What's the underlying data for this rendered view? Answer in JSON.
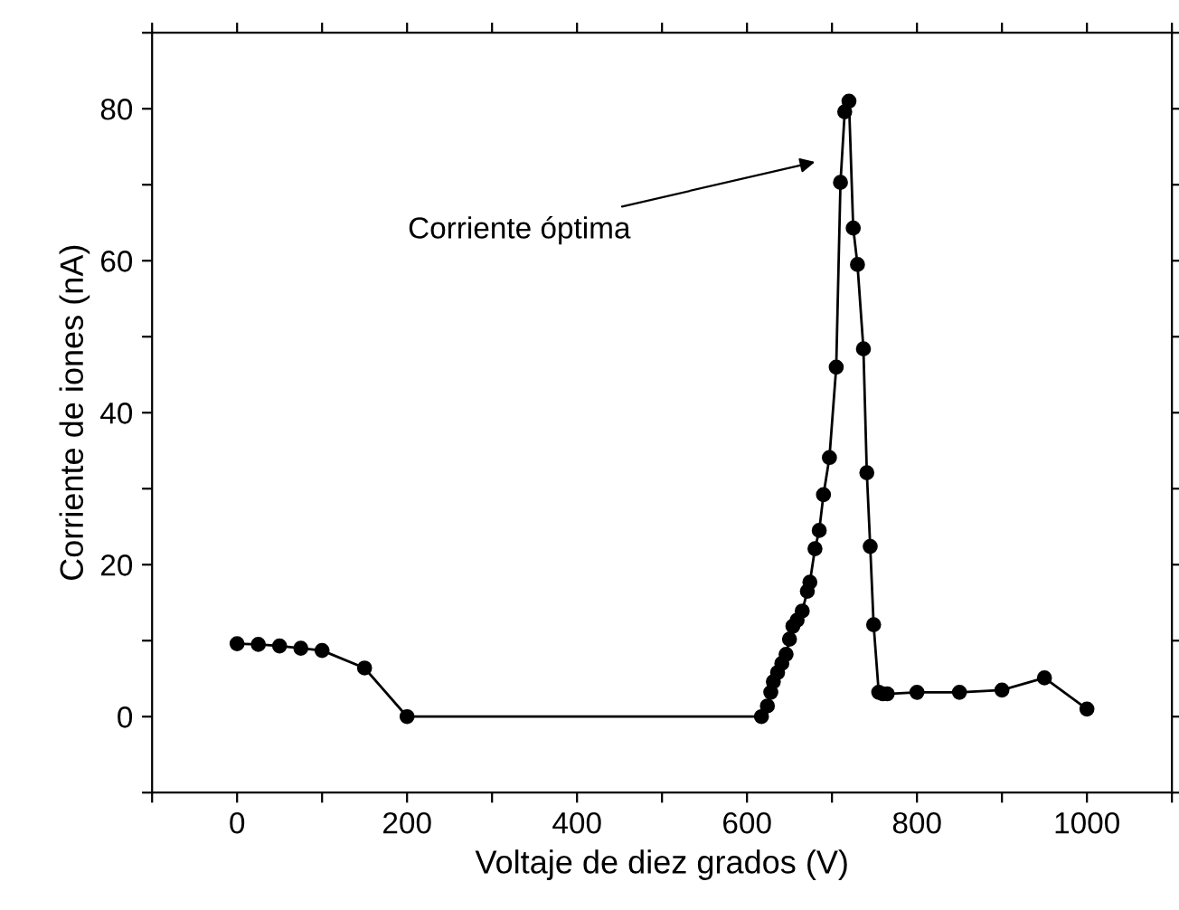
{
  "chart_data": {
    "type": "line",
    "xlabel": "Voltaje de diez grados (V)",
    "ylabel": "Corriente de iones (nA)",
    "x": [
      0,
      25,
      50,
      75,
      100,
      150,
      200,
      617,
      624,
      628,
      631,
      636,
      641,
      646,
      650,
      654,
      659,
      665,
      671,
      674,
      680,
      685,
      690,
      697,
      705,
      710,
      715,
      720,
      725,
      730,
      737,
      741,
      745,
      749,
      755,
      760,
      765,
      800,
      850,
      900,
      950,
      1000
    ],
    "series": [
      {
        "color": "#000000",
        "values": [
          9.6,
          9.5,
          9.3,
          9.0,
          8.7,
          6.4,
          0,
          0,
          1.4,
          3.2,
          4.6,
          5.8,
          7.0,
          8.2,
          10.2,
          11.9,
          12.7,
          13.9,
          16.5,
          17.7,
          22.1,
          24.5,
          29.2,
          34.1,
          46,
          70.3,
          79.6,
          81,
          64.3,
          59.5,
          48.4,
          32.1,
          22.4,
          12.1,
          3.2,
          3.0,
          3.0,
          3.2,
          3.2,
          3.5,
          5.1,
          1.0
        ]
      }
    ],
    "marker": "circle",
    "line_style": "solid",
    "grid": false,
    "legend": false,
    "xlim": [
      -100,
      1100
    ],
    "ylim": [
      -10,
      90
    ],
    "xticks": [
      {
        "value": -100,
        "label": null
      },
      0,
      {
        "value": 100,
        "label": null
      },
      200,
      {
        "value": 300,
        "label": null
      },
      400,
      {
        "value": 500,
        "label": null
      },
      600,
      {
        "value": 700,
        "label": null
      },
      800,
      {
        "value": 900,
        "label": null
      },
      1000,
      {
        "value": 1100,
        "label": null
      }
    ],
    "yticks": [
      {
        "value": -10,
        "label": null
      },
      0,
      {
        "value": 10,
        "label": null
      },
      20,
      {
        "value": 30,
        "label": null
      },
      40,
      {
        "value": 50,
        "label": null
      },
      60,
      {
        "value": 70,
        "label": null
      },
      80,
      {
        "value": 90,
        "label": null
      }
    ],
    "annotations": [
      "Corriente óptima"
    ]
  }
}
